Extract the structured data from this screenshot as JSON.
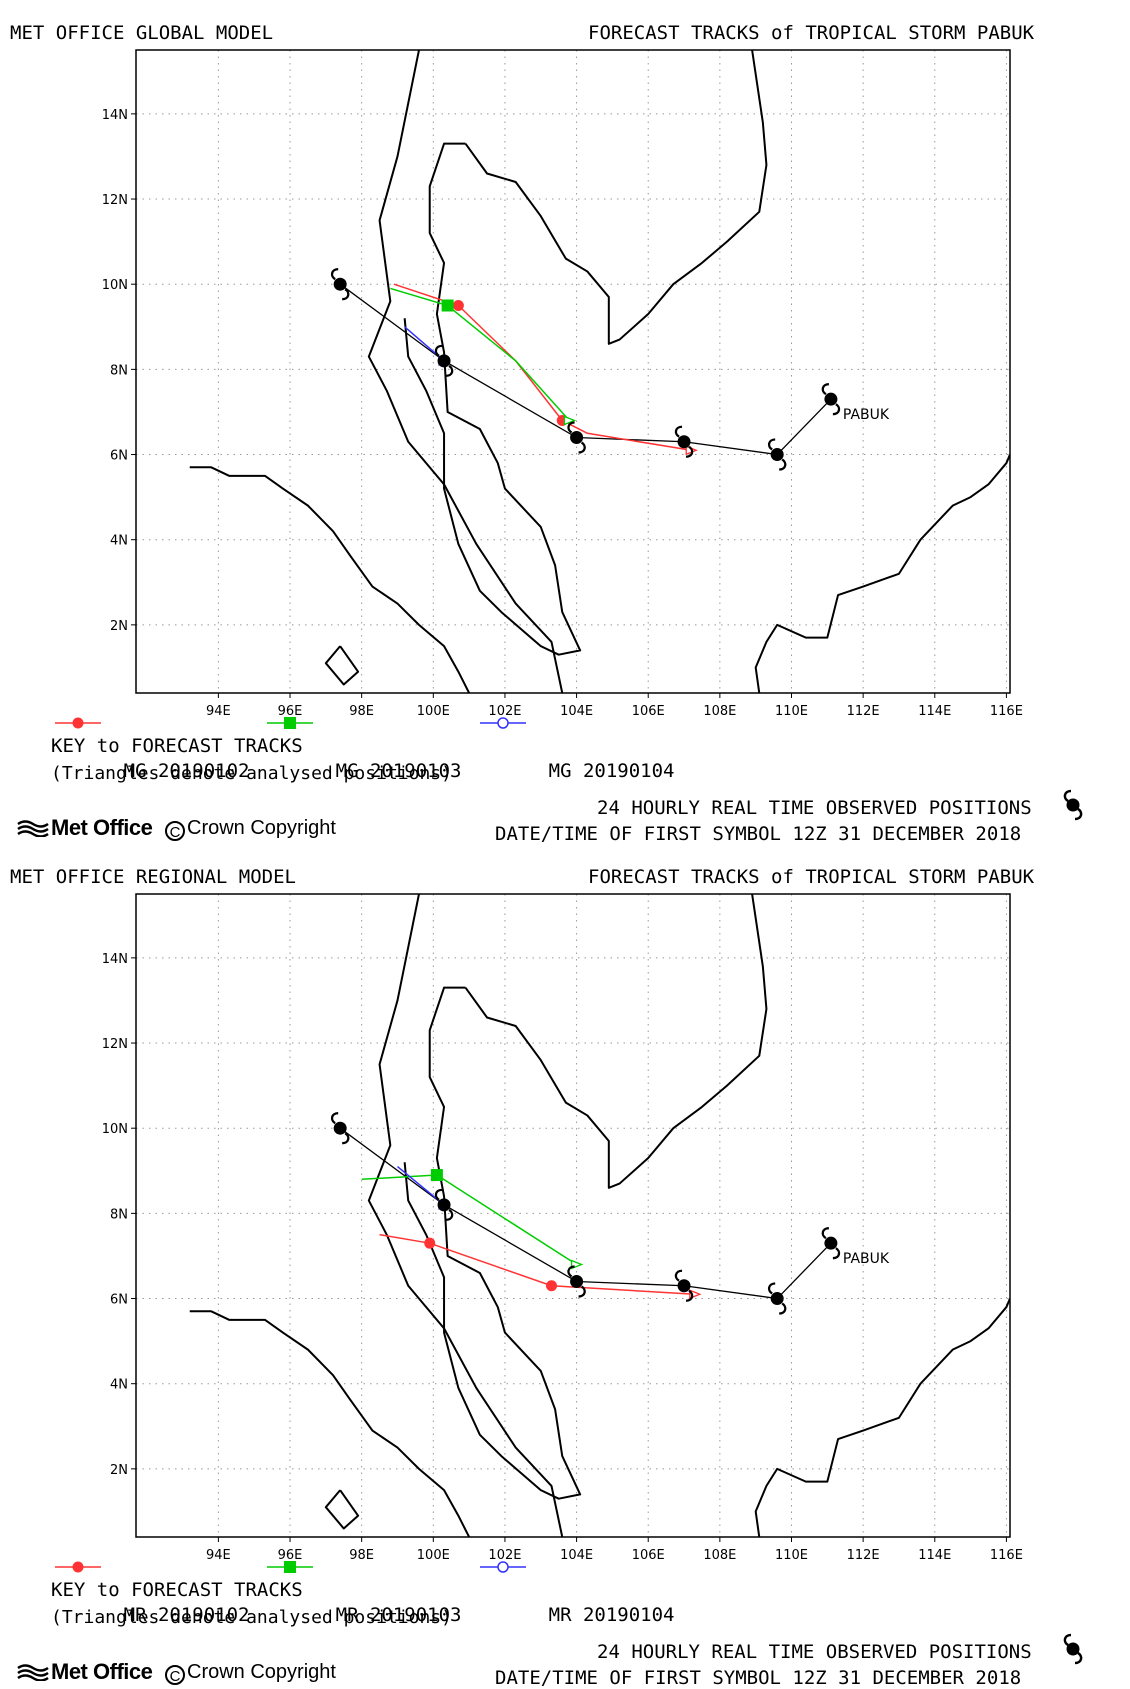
{
  "colors": {
    "red": "#ff3333",
    "green": "#00cc00",
    "blue": "#3333ff",
    "black": "#000000"
  },
  "panels": [
    {
      "model_title": "MET OFFICE GLOBAL MODEL",
      "chart_title": "FORECAST TRACKS of TROPICAL STORM PABUK",
      "legend": [
        "MG 20190102",
        "MG 20190103",
        "MG 20190104"
      ],
      "key_title": "KEY to FORECAST TRACKS",
      "key_note": "(Triangles denote analysed positions)",
      "observed_label": "24 HOURLY REAL TIME OBSERVED POSITIONS",
      "first_symbol_label": "DATE/TIME OF FIRST SYMBOL 12Z 31 DECEMBER 2018",
      "brand": "Met Office",
      "copyright": "Crown Copyright"
    },
    {
      "model_title": "MET OFFICE REGIONAL MODEL",
      "chart_title": "FORECAST TRACKS of TROPICAL STORM PABUK",
      "legend": [
        "MR 20190102",
        "MR 20190103",
        "MR 20190104"
      ],
      "key_title": "KEY to FORECAST TRACKS",
      "key_note": "(Triangles denote analysed positions)",
      "observed_label": "24 HOURLY REAL TIME OBSERVED POSITIONS",
      "first_symbol_label": "DATE/TIME OF FIRST SYMBOL 12Z 31 DECEMBER 2018",
      "brand": "Met Office",
      "copyright": "Crown Copyright"
    }
  ],
  "chart_data": [
    {
      "type": "scatter",
      "title": "FORECAST TRACKS of TROPICAL STORM PABUK",
      "xlim": [
        91.7,
        116.1
      ],
      "ylim": [
        0.4,
        15.5
      ],
      "xticks": [
        "94E",
        "96E",
        "98E",
        "100E",
        "102E",
        "104E",
        "106E",
        "108E",
        "110E",
        "112E",
        "114E",
        "116E"
      ],
      "yticks": [
        "2N",
        "4N",
        "6N",
        "8N",
        "10N",
        "12N",
        "14N"
      ],
      "grid": true,
      "storm_label": "PABUK",
      "observed_track": [
        [
          111.1,
          7.3
        ],
        [
          109.6,
          6.0
        ],
        [
          107.0,
          6.3
        ],
        [
          104.0,
          6.4
        ],
        [
          100.3,
          8.2
        ],
        [
          97.4,
          10.0
        ]
      ],
      "series": [
        {
          "name": "MG 20190102",
          "color": "red",
          "marker": "circle",
          "points": [
            [
              107.2,
              6.1
            ],
            [
              104.3,
              6.5
            ],
            [
              103.6,
              6.8
            ],
            [
              102.3,
              8.2
            ],
            [
              100.7,
              9.5
            ],
            [
              98.9,
              10.0
            ]
          ],
          "marked": [
            [
              103.6,
              6.8
            ],
            [
              100.7,
              9.5
            ]
          ]
        },
        {
          "name": "MG 20190103",
          "color": "green",
          "marker": "square",
          "points": [
            [
              103.8,
              6.8
            ],
            [
              102.3,
              8.2
            ],
            [
              100.4,
              9.5
            ],
            [
              98.8,
              9.9
            ]
          ],
          "marked": [
            [
              100.4,
              9.5
            ]
          ]
        },
        {
          "name": "MG 20190104",
          "color": "blue",
          "marker": "open-circle",
          "points": [
            [
              100.3,
              8.2
            ],
            [
              99.2,
              9.0
            ]
          ],
          "marked": []
        }
      ]
    },
    {
      "type": "scatter",
      "title": "FORECAST TRACKS of TROPICAL STORM PABUK",
      "xlim": [
        91.7,
        116.1
      ],
      "ylim": [
        0.4,
        15.5
      ],
      "xticks": [
        "94E",
        "96E",
        "98E",
        "100E",
        "102E",
        "104E",
        "106E",
        "108E",
        "110E",
        "112E",
        "114E",
        "116E"
      ],
      "yticks": [
        "2N",
        "4N",
        "6N",
        "8N",
        "10N",
        "12N",
        "14N"
      ],
      "grid": true,
      "storm_label": "PABUK",
      "observed_track": [
        [
          111.1,
          7.3
        ],
        [
          109.6,
          6.0
        ],
        [
          107.0,
          6.3
        ],
        [
          104.0,
          6.4
        ],
        [
          100.3,
          8.2
        ],
        [
          97.4,
          10.0
        ]
      ],
      "series": [
        {
          "name": "MR 20190102",
          "color": "red",
          "marker": "circle",
          "points": [
            [
              107.3,
              6.1
            ],
            [
              103.3,
              6.3
            ],
            [
              99.9,
              7.3
            ],
            [
              98.5,
              7.5
            ]
          ],
          "marked": [
            [
              103.3,
              6.3
            ],
            [
              99.9,
              7.3
            ]
          ]
        },
        {
          "name": "MR 20190103",
          "color": "green",
          "marker": "square",
          "points": [
            [
              104.0,
              6.8
            ],
            [
              100.1,
              8.9
            ],
            [
              98.0,
              8.8
            ]
          ],
          "marked": [
            [
              100.1,
              8.9
            ]
          ]
        },
        {
          "name": "MR 20190104",
          "color": "blue",
          "marker": "open-circle",
          "points": [
            [
              100.3,
              8.2
            ],
            [
              99.0,
              9.1
            ]
          ],
          "marked": []
        }
      ]
    }
  ]
}
